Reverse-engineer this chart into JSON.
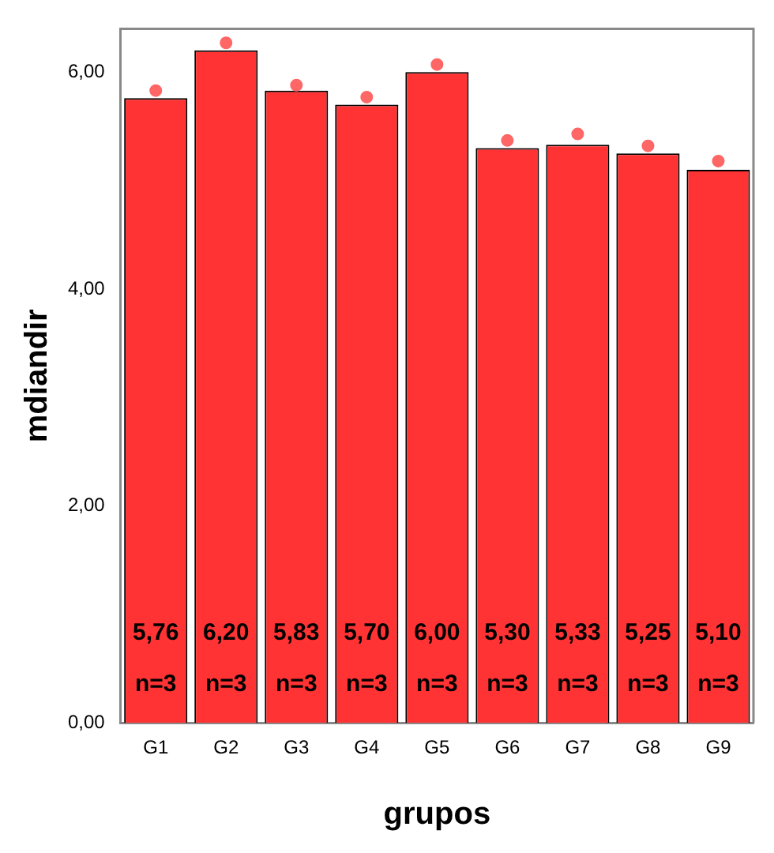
{
  "chart_data": {
    "type": "bar",
    "xlabel": "grupos",
    "ylabel": "mdiandir",
    "categories": [
      "G1",
      "G2",
      "G3",
      "G4",
      "G5",
      "G6",
      "G7",
      "G8",
      "G9"
    ],
    "series": [
      {
        "color": "#ff3333",
        "values": [
          5.76,
          6.2,
          5.83,
          5.7,
          6.0,
          5.3,
          5.33,
          5.25,
          5.1
        ],
        "value_labels": [
          "5,76",
          "6,20",
          "5,83",
          "5,70",
          "6,00",
          "5,30",
          "5,33",
          "5,25",
          "5,10"
        ]
      },
      {
        "type": "scatter",
        "color": "#ff6666",
        "marker": "circle",
        "x": [
          "G1",
          "G2",
          "G3",
          "G4",
          "G5",
          "G6",
          "G7",
          "G8",
          "G9"
        ],
        "values": [
          5.83,
          6.27,
          5.88,
          5.77,
          6.07,
          5.37,
          5.43,
          5.32,
          5.18
        ]
      }
    ],
    "annotations": [
      "n=3",
      "n=3",
      "n=3",
      "n=3",
      "n=3",
      "n=3",
      "n=3",
      "n=3",
      "n=3"
    ],
    "ylim": [
      0,
      6.4
    ],
    "yticks": [
      {
        "value": 0,
        "label": "0,00"
      },
      {
        "value": 2,
        "label": "2,00"
      },
      {
        "value": 4,
        "label": "4,00"
      },
      {
        "value": 6,
        "label": "6,00"
      }
    ],
    "grid": false,
    "legend": false
  }
}
